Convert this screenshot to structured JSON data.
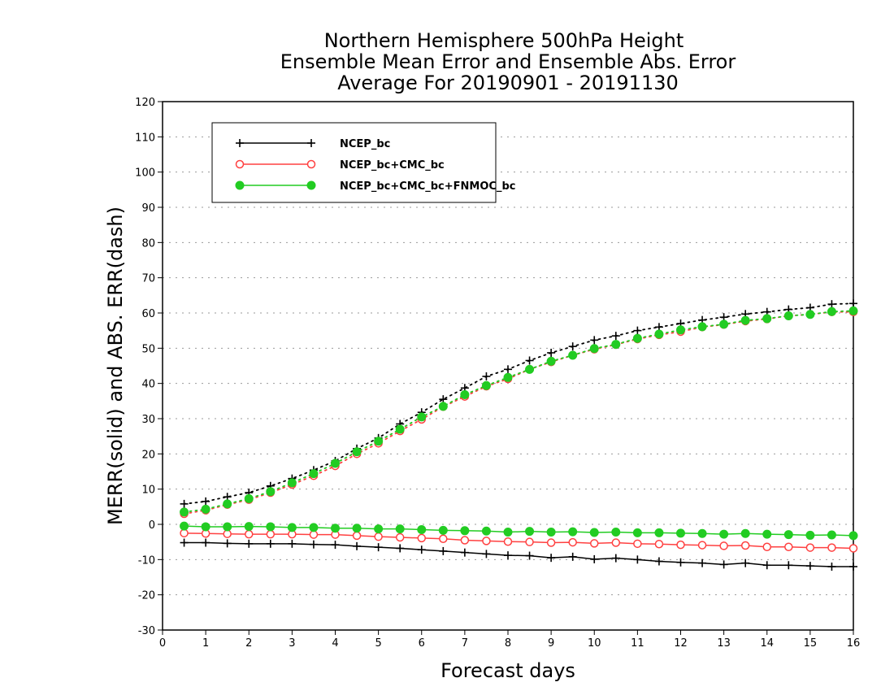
{
  "chart_data": {
    "type": "line",
    "title": [
      "Northern Hemisphere 500hPa Height",
      "Ensemble Mean Error and Ensemble Abs. Error",
      "Average For 20190901 - 20191130"
    ],
    "xlabel": "Forecast days",
    "ylabel": "MERR(solid) and ABS. ERR(dash)",
    "xlim": [
      0,
      16
    ],
    "ylim": [
      -30,
      120
    ],
    "x_ticks": [
      0,
      1,
      2,
      3,
      4,
      5,
      6,
      7,
      8,
      9,
      10,
      11,
      12,
      13,
      14,
      15,
      16
    ],
    "y_ticks": [
      -30,
      -20,
      -10,
      0,
      10,
      20,
      30,
      40,
      50,
      60,
      70,
      80,
      90,
      100,
      110,
      120
    ],
    "grid": "horizontal dotted",
    "legend_position": "top-left",
    "x": [
      0.5,
      1,
      1.5,
      2,
      2.5,
      3,
      3.5,
      4,
      4.5,
      5,
      5.5,
      6,
      6.5,
      7,
      7.5,
      8,
      8.5,
      9,
      9.5,
      10,
      10.5,
      11,
      11.5,
      12,
      12.5,
      13,
      13.5,
      14,
      14.5,
      15,
      15.5,
      16
    ],
    "series": [
      {
        "name": "NCEP_bc",
        "color": "#000000",
        "marker": "plus",
        "merr": [
          -5.2,
          -5.2,
          -5.4,
          -5.5,
          -5.5,
          -5.5,
          -5.7,
          -5.8,
          -6.2,
          -6.5,
          -6.8,
          -7.2,
          -7.6,
          -8.0,
          -8.4,
          -8.8,
          -8.9,
          -9.5,
          -9.2,
          -9.9,
          -9.6,
          -10.0,
          -10.5,
          -10.8,
          -11.0,
          -11.4,
          -11.0,
          -11.6,
          -11.6,
          -11.8,
          -12.0,
          -12.0
        ],
        "abs_err": [
          5.8,
          6.5,
          7.8,
          9.0,
          10.9,
          13.0,
          15.4,
          18.0,
          21.5,
          24.5,
          28.5,
          31.8,
          35.5,
          38.7,
          42.0,
          44.0,
          46.5,
          48.7,
          50.5,
          52.3,
          53.5,
          55.0,
          56.0,
          57.0,
          58.0,
          58.8,
          59.7,
          60.3,
          61.0,
          61.5,
          62.5,
          62.7
        ]
      },
      {
        "name": "NCEP_bc+CMC_bc",
        "color": "#ff4040",
        "marker": "open-circle",
        "merr": [
          -2.5,
          -2.6,
          -2.7,
          -2.8,
          -2.8,
          -2.8,
          -2.9,
          -2.9,
          -3.2,
          -3.5,
          -3.7,
          -3.9,
          -4.1,
          -4.5,
          -4.7,
          -4.9,
          -5.0,
          -5.2,
          -5.1,
          -5.4,
          -5.2,
          -5.5,
          -5.6,
          -5.8,
          -5.9,
          -6.1,
          -6.0,
          -6.4,
          -6.4,
          -6.6,
          -6.6,
          -6.8
        ],
        "abs_err": [
          3.0,
          4.0,
          5.6,
          7.0,
          9.0,
          11.3,
          13.8,
          16.6,
          20.0,
          23.0,
          26.5,
          29.8,
          33.4,
          36.3,
          39.2,
          41.3,
          44.0,
          46.1,
          48.0,
          49.7,
          51.0,
          52.6,
          53.8,
          54.7,
          56.0,
          56.7,
          57.7,
          58.3,
          59.2,
          59.6,
          60.3,
          60.3
        ]
      },
      {
        "name": "NCEP_bc+CMC_bc+FNMOC_bc",
        "color": "#22cc22",
        "marker": "filled-circle",
        "merr": [
          -0.5,
          -0.7,
          -0.7,
          -0.6,
          -0.7,
          -0.9,
          -0.9,
          -1.1,
          -1.1,
          -1.3,
          -1.3,
          -1.5,
          -1.7,
          -1.8,
          -1.9,
          -2.2,
          -2.0,
          -2.2,
          -2.1,
          -2.3,
          -2.2,
          -2.4,
          -2.4,
          -2.5,
          -2.6,
          -2.8,
          -2.6,
          -2.8,
          -2.9,
          -3.1,
          -3.0,
          -3.2
        ],
        "abs_err": [
          3.5,
          4.3,
          5.8,
          7.3,
          9.3,
          11.8,
          14.4,
          17.3,
          20.6,
          23.6,
          27.0,
          30.5,
          33.5,
          36.8,
          39.4,
          41.7,
          44.0,
          46.3,
          48.0,
          49.9,
          51.1,
          52.8,
          54.0,
          55.2,
          56.1,
          56.8,
          57.9,
          58.4,
          59.2,
          59.6,
          60.4,
          60.6
        ]
      }
    ]
  }
}
